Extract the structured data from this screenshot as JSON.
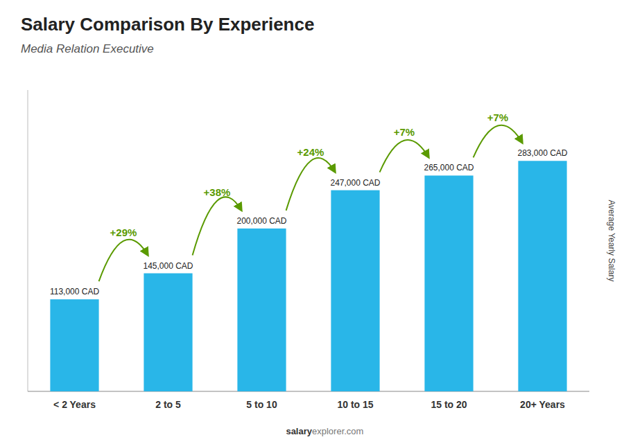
{
  "chart_data": {
    "type": "bar",
    "title": "Salary Comparison By Experience",
    "subtitle": "Media Relation Executive",
    "ylabel": "Average Yearly Salary",
    "categories": [
      "< 2 Years",
      "2 to 5",
      "5 to 10",
      "10 to 15",
      "15 to 20",
      "20+ Years"
    ],
    "values": [
      113000,
      145000,
      200000,
      247000,
      265000,
      283000
    ],
    "value_labels": [
      "113,000 CAD",
      "145,000 CAD",
      "200,000 CAD",
      "247,000 CAD",
      "265,000 CAD",
      "283,000 CAD"
    ],
    "data_labels": true,
    "annotations": [
      "+29%",
      "+38%",
      "+24%",
      "+7%",
      "+7%"
    ],
    "watermark": [
      "salary",
      "explorer.com"
    ],
    "color": "#29b6e8",
    "ylim": [
      0,
      370000
    ],
    "tick_labels": "x",
    "grid": false
  }
}
